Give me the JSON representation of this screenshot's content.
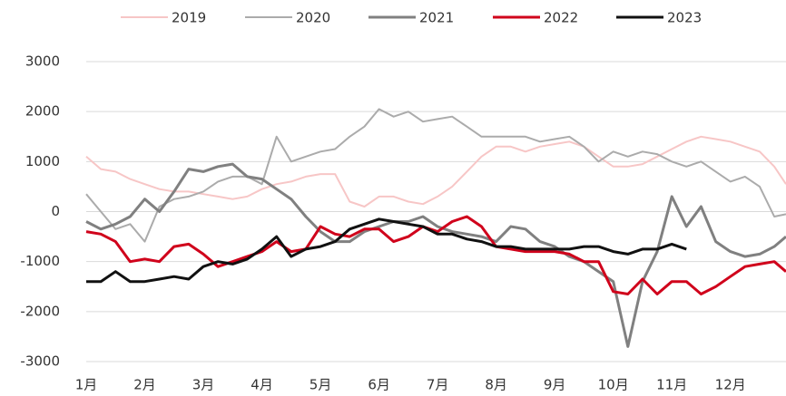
{
  "chart_data": {
    "type": "line",
    "x": [
      1,
      1.25,
      1.5,
      1.75,
      2,
      2.25,
      2.5,
      2.75,
      3,
      3.25,
      3.5,
      3.75,
      4,
      4.25,
      4.5,
      4.75,
      5,
      5.25,
      5.5,
      5.75,
      6,
      6.25,
      6.5,
      6.75,
      7,
      7.25,
      7.5,
      7.75,
      8,
      8.25,
      8.5,
      8.75,
      9,
      9.25,
      9.5,
      9.75,
      10,
      10.25,
      10.5,
      10.75,
      11,
      11.25,
      11.5,
      11.75,
      12,
      12.25,
      12.5,
      12.75,
      12.95
    ],
    "xlim": [
      1,
      12.95
    ],
    "xticks": [
      {
        "value": 1,
        "label": "1月"
      },
      {
        "value": 2,
        "label": "2月"
      },
      {
        "value": 3,
        "label": "3月"
      },
      {
        "value": 4,
        "label": "4月"
      },
      {
        "value": 5,
        "label": "5月"
      },
      {
        "value": 6,
        "label": "6月"
      },
      {
        "value": 7,
        "label": "7月"
      },
      {
        "value": 8,
        "label": "8月"
      },
      {
        "value": 9,
        "label": "9月"
      },
      {
        "value": 10,
        "label": "10月"
      },
      {
        "value": 11,
        "label": "11月"
      },
      {
        "value": 12,
        "label": "12月"
      }
    ],
    "ylim": [
      -3000,
      3000
    ],
    "yticks": [
      3000,
      2000,
      1000,
      0,
      -1000,
      -2000,
      -3000
    ],
    "grid": true,
    "legend": "top",
    "series": [
      {
        "name": "2019",
        "color": "#f7c6c6",
        "width": 2,
        "values": [
          1100,
          850,
          800,
          650,
          550,
          450,
          400,
          400,
          350,
          300,
          250,
          300,
          450,
          550,
          600,
          700,
          750,
          750,
          200,
          100,
          300,
          300,
          200,
          150,
          300,
          500,
          800,
          1100,
          1300,
          1300,
          1200,
          1300,
          1350,
          1400,
          1300,
          1100,
          900,
          900,
          950,
          1100,
          1250,
          1400,
          1500,
          1450,
          1400,
          1300,
          1200,
          900,
          550
        ]
      },
      {
        "name": "2020",
        "color": "#ababab",
        "width": 2,
        "values": [
          350,
          0,
          -350,
          -250,
          -600,
          100,
          250,
          300,
          400,
          600,
          700,
          700,
          550,
          1500,
          1000,
          1100,
          1200,
          1250,
          1500,
          1700,
          2050,
          1900,
          2000,
          1800,
          1850,
          1900,
          1700,
          1500,
          1500,
          1500,
          1500,
          1400,
          1450,
          1500,
          1300,
          1000,
          1200,
          1100,
          1200,
          1150,
          1000,
          900,
          1000,
          800,
          600,
          700,
          500,
          -100,
          -50
        ]
      },
      {
        "name": "2021",
        "color": "#808080",
        "width": 3,
        "values": [
          -200,
          -350,
          -250,
          -100,
          250,
          0,
          400,
          850,
          800,
          900,
          950,
          700,
          650,
          450,
          250,
          -100,
          -400,
          -600,
          -600,
          -400,
          -300,
          -200,
          -200,
          -100,
          -300,
          -400,
          -450,
          -500,
          -600,
          -300,
          -350,
          -600,
          -700,
          -900,
          -1000,
          -1200,
          -1400,
          -2700,
          -1400,
          -800,
          300,
          -300,
          100,
          -600,
          -800,
          -900,
          -850,
          -700,
          -500
        ]
      },
      {
        "name": "2022",
        "color": "#d0021b",
        "width": 3,
        "values": [
          -400,
          -450,
          -600,
          -1000,
          -950,
          -1000,
          -700,
          -650,
          -850,
          -1100,
          -1000,
          -900,
          -800,
          -600,
          -800,
          -750,
          -300,
          -450,
          -500,
          -350,
          -350,
          -600,
          -500,
          -300,
          -400,
          -200,
          -100,
          -300,
          -700,
          -750,
          -800,
          -800,
          -800,
          -850,
          -1000,
          -1000,
          -1600,
          -1650,
          -1350,
          -1650,
          -1400,
          -1400,
          -1650,
          -1500,
          -1300,
          -1100,
          -1050,
          -1000,
          -1200
        ]
      },
      {
        "name": "2023",
        "color": "#111111",
        "width": 3,
        "values": [
          -1400,
          -1400,
          -1200,
          -1400,
          -1400,
          -1350,
          -1300,
          -1350,
          -1100,
          -1000,
          -1050,
          -950,
          -750,
          -500,
          -900,
          -750,
          -700,
          -600,
          -350,
          -250,
          -150,
          -200,
          -250,
          -300,
          -450,
          -450,
          -550,
          -600,
          -700,
          -700,
          -750,
          -750,
          -750,
          -750,
          -700,
          -700,
          -800,
          -850,
          -750,
          -750,
          -650,
          -750,
          null,
          null,
          null,
          null,
          null,
          null,
          null
        ]
      }
    ]
  }
}
